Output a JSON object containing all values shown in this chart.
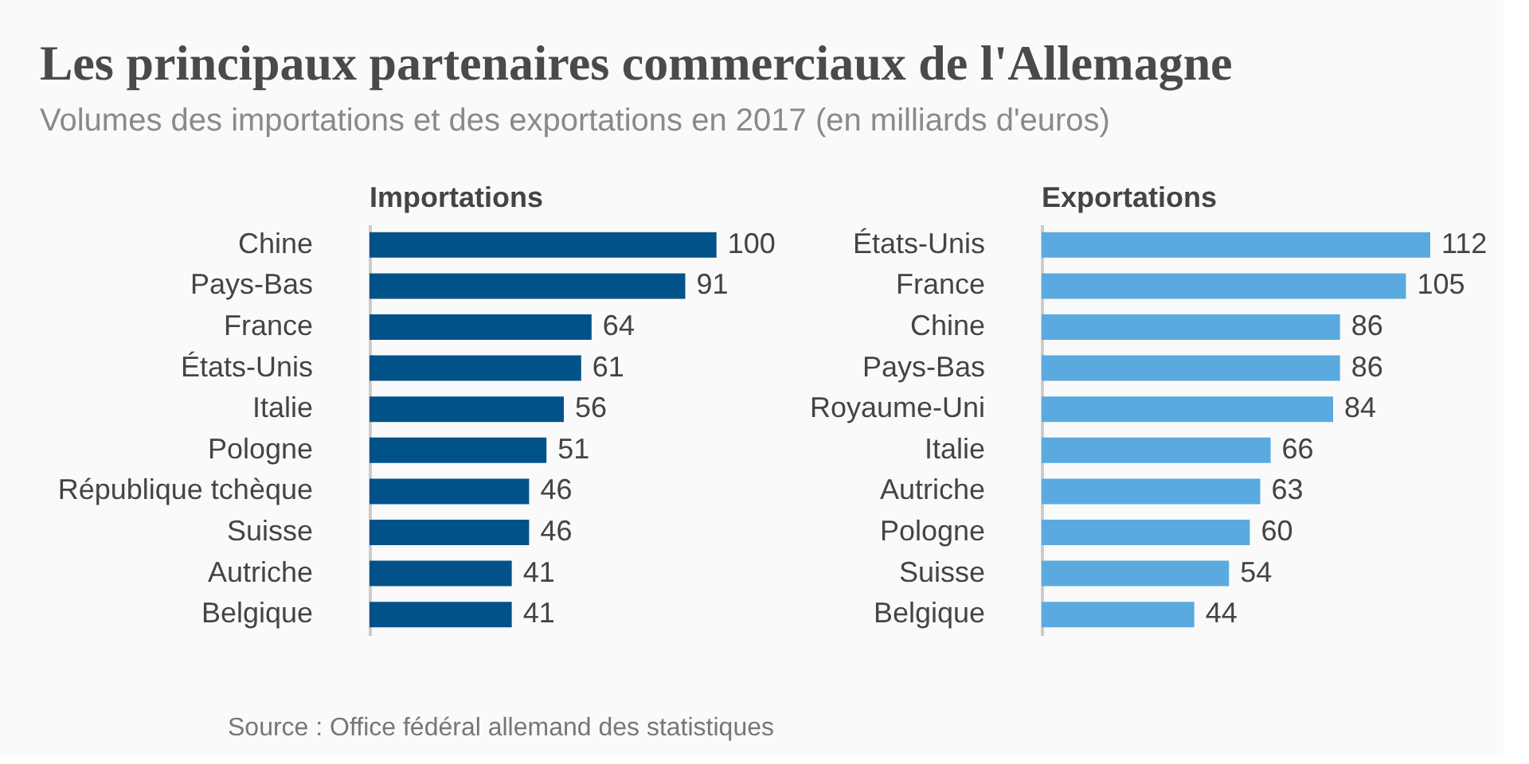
{
  "chart_data": [
    {
      "type": "bar",
      "title": "Les principaux partenaires commerciaux de l'Allemagne",
      "subtitle": "Volumes des importations et des exportations en 2017 (en milliards d'euros)",
      "orientation": "horizontal",
      "categories": [
        "Chine",
        "Pays-Bas",
        "France",
        "États-Unis",
        "Italie",
        "Pologne",
        "République tchèque",
        "Suisse",
        "Autriche",
        "Belgique"
      ],
      "series": [
        {
          "name": "Importations",
          "color": "#02528a",
          "values": [
            100,
            91,
            64,
            61,
            56,
            51,
            46,
            46,
            41,
            41
          ]
        }
      ],
      "data_labels": true,
      "tick_labels": "y",
      "annotations": [
        "Source : Office fédéral allemand des statistiques"
      ]
    },
    {
      "type": "bar",
      "orientation": "horizontal",
      "categories": [
        "États-Unis",
        "France",
        "Chine",
        "Pays-Bas",
        "Royaume-Uni",
        "Italie",
        "Autriche",
        "Pologne",
        "Suisse",
        "Belgique"
      ],
      "series": [
        {
          "name": "Exportations",
          "color": "#5aaadf",
          "values": [
            112,
            105,
            86,
            86,
            84,
            66,
            63,
            60,
            54,
            44
          ]
        }
      ],
      "data_labels": true,
      "tick_labels": "y"
    }
  ]
}
